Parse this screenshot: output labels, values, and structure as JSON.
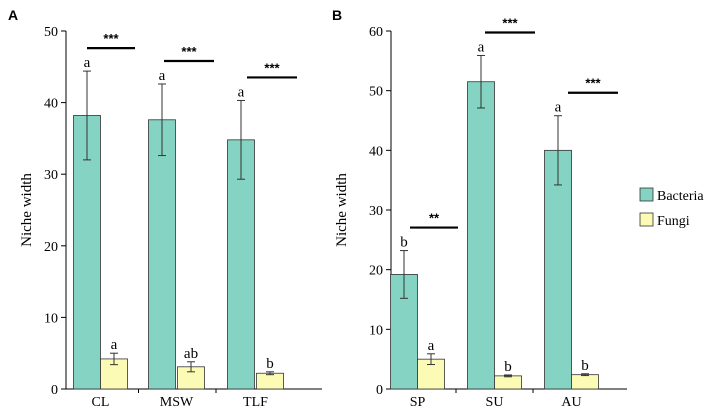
{
  "colors": {
    "bacteria": "#85d3c2",
    "fungi": "#fbfbb5",
    "axis": "#000000"
  },
  "legend": {
    "placement": "right",
    "items": [
      {
        "label": "Bacteria",
        "color": "#85d3c2"
      },
      {
        "label": "Fungi",
        "color": "#fbfbb5"
      }
    ]
  },
  "chart_data": [
    {
      "type": "bar",
      "panel_label": "A",
      "ylabel": "Niche width",
      "ylim": [
        0,
        50
      ],
      "yticks": [
        0,
        10,
        20,
        30,
        40,
        50
      ],
      "categories": [
        "CL",
        "MSW",
        "TLF"
      ],
      "series": [
        {
          "name": "Bacteria",
          "values": [
            38.2,
            37.6,
            34.8
          ],
          "errors": [
            6.2,
            5.0,
            5.5
          ],
          "letters": [
            "a",
            "a",
            "a"
          ]
        },
        {
          "name": "Fungi",
          "values": [
            4.2,
            3.1,
            2.2
          ],
          "errors": [
            0.8,
            0.7,
            0.2
          ],
          "letters": [
            "a",
            "ab",
            "b"
          ]
        }
      ],
      "significance": [
        "***",
        "***",
        "***"
      ]
    },
    {
      "type": "bar",
      "panel_label": "B",
      "ylabel": "Niche width",
      "ylim": [
        0,
        60
      ],
      "yticks": [
        0,
        10,
        20,
        30,
        40,
        50,
        60
      ],
      "categories": [
        "SP",
        "SU",
        "AU"
      ],
      "series": [
        {
          "name": "Bacteria",
          "values": [
            19.2,
            51.5,
            40.0
          ],
          "errors": [
            4.0,
            4.4,
            5.8
          ],
          "letters": [
            "b",
            "a",
            "a"
          ]
        },
        {
          "name": "Fungi",
          "values": [
            5.0,
            2.2,
            2.4
          ],
          "errors": [
            0.9,
            0.15,
            0.15
          ],
          "letters": [
            "a",
            "b",
            "b"
          ]
        }
      ],
      "significance": [
        "**",
        "***",
        "***"
      ]
    }
  ]
}
